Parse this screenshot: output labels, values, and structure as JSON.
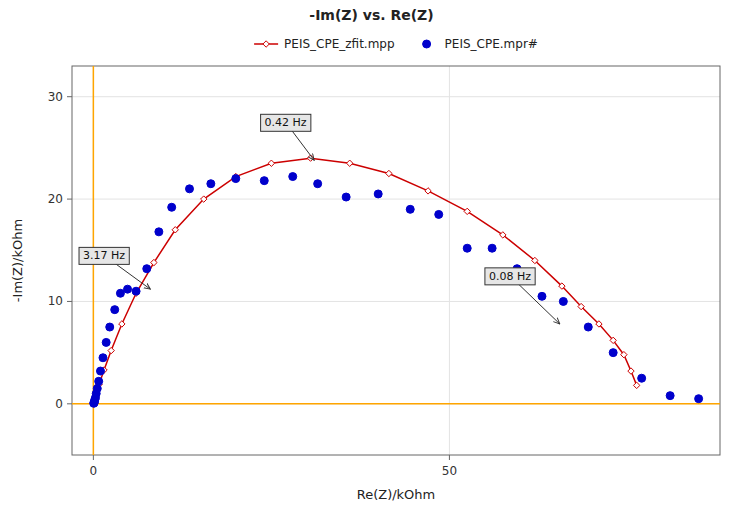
{
  "chart_data": {
    "type": "scatter",
    "title": "-Im(Z) vs. Re(Z)",
    "x_label": "Re(Z)/kOhm",
    "y_label": "-Im(Z)/kOhm",
    "xlim": [
      -3,
      88
    ],
    "ylim": [
      -5,
      33
    ],
    "xticks": [
      0,
      50
    ],
    "yticks": [
      0,
      10,
      20,
      30
    ],
    "grid": true,
    "legend": "top",
    "reference_lines": [
      {
        "axis": "x",
        "value": 0,
        "color": "#FFA500"
      },
      {
        "axis": "y",
        "value": 0,
        "color": "#FFA500"
      }
    ],
    "series": [
      {
        "name": "PEIS_CPE_zfit.mpp",
        "type": "line",
        "color": "#CC0000",
        "marker": "diamond",
        "line_style": "solid",
        "x": [
          0.15,
          0.4,
          0.8,
          1.5,
          2.5,
          4.0,
          6.0,
          8.5,
          11.5,
          15.5,
          20.0,
          25.0,
          30.5,
          36.0,
          41.5,
          47.0,
          52.5,
          57.5,
          62.0,
          65.8,
          68.5,
          71.0,
          73.0,
          74.5,
          75.5,
          76.3
        ],
        "values": [
          0.4,
          1.0,
          1.9,
          3.3,
          5.2,
          7.8,
          10.8,
          13.8,
          17.0,
          20.0,
          22.2,
          23.5,
          24.0,
          23.5,
          22.5,
          20.8,
          18.8,
          16.5,
          14.0,
          11.5,
          9.5,
          7.8,
          6.2,
          4.8,
          3.2,
          1.8
        ]
      },
      {
        "name": "PEIS_CPE.mpr#",
        "type": "scatter",
        "color": "#0000CC",
        "marker": "circle",
        "x": [
          0.05,
          0.1,
          0.15,
          0.2,
          0.3,
          0.4,
          0.55,
          0.75,
          1.0,
          1.35,
          1.8,
          2.3,
          3.0,
          3.8,
          4.8,
          6.0,
          7.5,
          9.2,
          11.0,
          13.5,
          16.5,
          20.0,
          24.0,
          28.0,
          31.5,
          35.5,
          40.0,
          44.5,
          48.5,
          52.5,
          56.0,
          59.5,
          63.0,
          66.0,
          69.5,
          73.0,
          77.0,
          81.0,
          85.0
        ],
        "values": [
          0.05,
          0.1,
          0.2,
          0.4,
          0.6,
          1.0,
          1.5,
          2.2,
          3.2,
          4.5,
          6.0,
          7.5,
          9.2,
          10.8,
          11.2,
          11.0,
          13.2,
          16.8,
          19.2,
          21.0,
          21.5,
          22.0,
          21.8,
          22.2,
          21.5,
          20.2,
          20.5,
          19.0,
          18.5,
          15.2,
          15.2,
          13.2,
          10.5,
          10.0,
          7.5,
          5.0,
          2.5,
          0.8,
          0.5
        ]
      }
    ],
    "annotations": [
      {
        "text": "3.17 Hz",
        "x": 8.0,
        "y": 11.2,
        "text_x": 1.5,
        "text_y": 14.5
      },
      {
        "text": "0.42 Hz",
        "x": 31.0,
        "y": 23.8,
        "text_x": 27.0,
        "text_y": 27.5
      },
      {
        "text": "0.08 Hz",
        "x": 65.5,
        "y": 7.8,
        "text_x": 58.5,
        "text_y": 12.5
      }
    ]
  }
}
